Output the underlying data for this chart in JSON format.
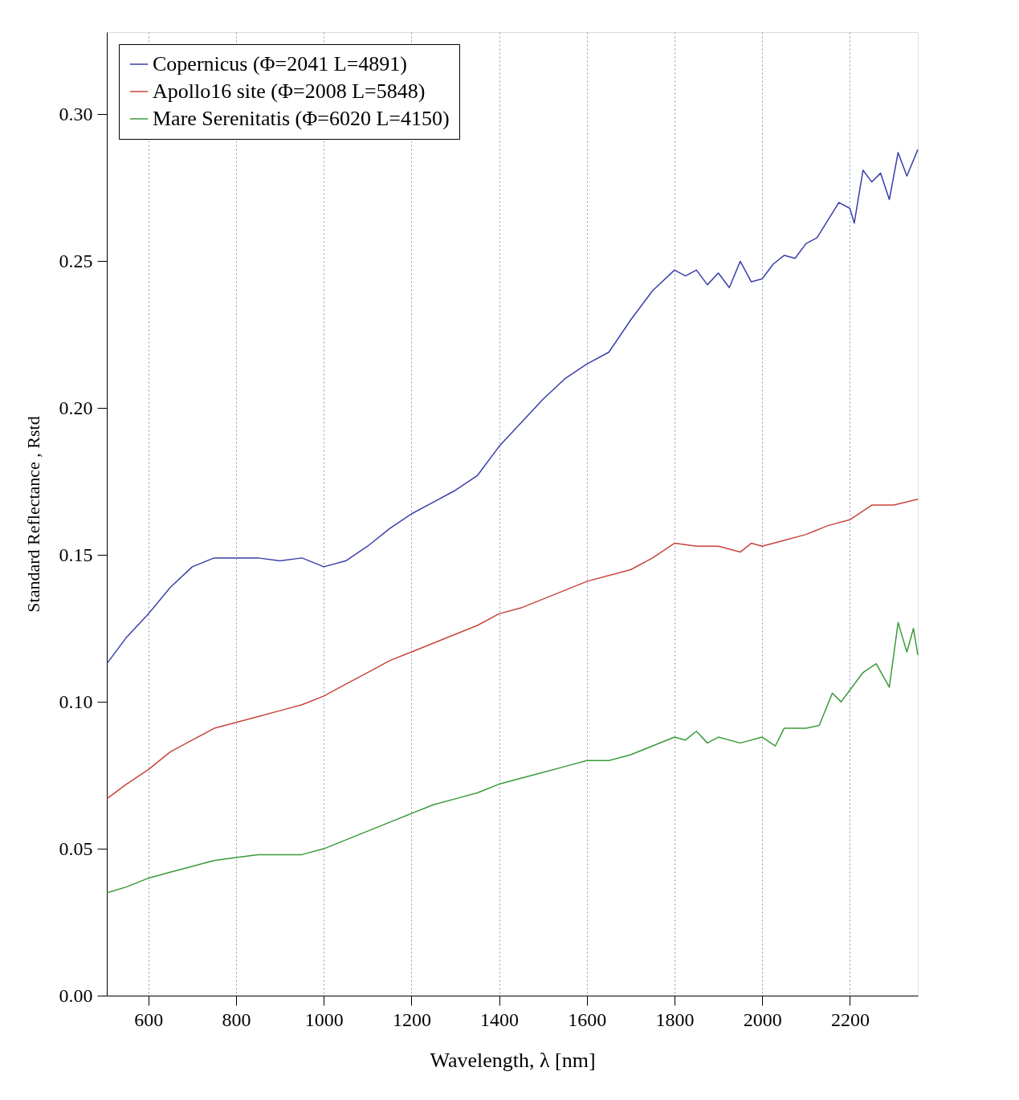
{
  "chart_data": {
    "type": "line",
    "xlabel": "Wavelength, λ [nm]",
    "ylabel": "Standard Reflectance , Rstd",
    "xlim": [
      505,
      2355
    ],
    "ylim": [
      0,
      0.328
    ],
    "xticks": [
      600,
      800,
      1000,
      1200,
      1400,
      1600,
      1800,
      2000,
      2200
    ],
    "yticks": [
      {
        "value": 0,
        "label": "0.00"
      },
      {
        "value": 0.05,
        "label": "0.05"
      },
      {
        "value": 0.1,
        "label": "0.10"
      },
      {
        "value": 0.15,
        "label": "0.15"
      },
      {
        "value": 0.2,
        "label": "0.20"
      },
      {
        "value": 0.25,
        "label": "0.25"
      },
      {
        "value": 0.3,
        "label": "0.30"
      }
    ],
    "grid": "x",
    "legend": "top left",
    "line_style": "solid",
    "marker": "none",
    "series": [
      {
        "name": "Copernicus    (Φ=2041 L=4891)",
        "color": "#3a3fa8",
        "x": [
          505,
          550,
          600,
          650,
          700,
          750,
          800,
          850,
          900,
          950,
          1000,
          1050,
          1100,
          1150,
          1200,
          1250,
          1300,
          1350,
          1400,
          1450,
          1500,
          1550,
          1600,
          1650,
          1700,
          1750,
          1800,
          1825,
          1850,
          1875,
          1900,
          1925,
          1950,
          1975,
          2000,
          2025,
          2050,
          2075,
          2100,
          2125,
          2150,
          2175,
          2200,
          2210,
          2230,
          2250,
          2270,
          2290,
          2310,
          2330,
          2355
        ],
        "values": [
          0.113,
          0.122,
          0.13,
          0.139,
          0.146,
          0.149,
          0.149,
          0.149,
          0.148,
          0.149,
          0.146,
          0.148,
          0.153,
          0.159,
          0.164,
          0.168,
          0.172,
          0.177,
          0.187,
          0.195,
          0.203,
          0.21,
          0.215,
          0.219,
          0.23,
          0.24,
          0.247,
          0.245,
          0.247,
          0.242,
          0.246,
          0.241,
          0.25,
          0.243,
          0.244,
          0.249,
          0.252,
          0.251,
          0.256,
          0.258,
          0.264,
          0.27,
          0.268,
          0.263,
          0.281,
          0.277,
          0.28,
          0.271,
          0.287,
          0.279,
          0.288
        ]
      },
      {
        "name": "Apollo16 site (Φ=2008 L=5848)",
        "color": "#c8453a",
        "x": [
          505,
          550,
          600,
          650,
          700,
          750,
          800,
          850,
          900,
          950,
          1000,
          1050,
          1100,
          1150,
          1200,
          1250,
          1300,
          1350,
          1400,
          1450,
          1500,
          1550,
          1600,
          1650,
          1700,
          1750,
          1800,
          1850,
          1900,
          1950,
          1975,
          2000,
          2050,
          2100,
          2150,
          2200,
          2250,
          2300,
          2355
        ],
        "values": [
          0.067,
          0.072,
          0.077,
          0.083,
          0.087,
          0.091,
          0.093,
          0.095,
          0.097,
          0.099,
          0.102,
          0.106,
          0.11,
          0.114,
          0.117,
          0.12,
          0.123,
          0.126,
          0.13,
          0.132,
          0.135,
          0.138,
          0.141,
          0.143,
          0.145,
          0.149,
          0.154,
          0.153,
          0.153,
          0.151,
          0.154,
          0.153,
          0.155,
          0.157,
          0.16,
          0.162,
          0.167,
          0.167,
          0.169
        ]
      },
      {
        "name": "Mare Serenitatis (Φ=6020 L=4150)",
        "color": "#3a9a3a",
        "x": [
          505,
          550,
          600,
          650,
          700,
          750,
          800,
          850,
          900,
          950,
          1000,
          1050,
          1100,
          1150,
          1200,
          1250,
          1300,
          1350,
          1400,
          1450,
          1500,
          1550,
          1600,
          1650,
          1700,
          1750,
          1800,
          1825,
          1850,
          1875,
          1900,
          1950,
          2000,
          2030,
          2050,
          2100,
          2130,
          2160,
          2180,
          2200,
          2230,
          2260,
          2290,
          2310,
          2330,
          2345,
          2355
        ],
        "values": [
          0.035,
          0.037,
          0.04,
          0.042,
          0.044,
          0.046,
          0.047,
          0.048,
          0.048,
          0.048,
          0.05,
          0.053,
          0.056,
          0.059,
          0.062,
          0.065,
          0.067,
          0.069,
          0.072,
          0.074,
          0.076,
          0.078,
          0.08,
          0.08,
          0.082,
          0.085,
          0.088,
          0.087,
          0.09,
          0.086,
          0.088,
          0.086,
          0.088,
          0.085,
          0.091,
          0.091,
          0.092,
          0.103,
          0.1,
          0.104,
          0.11,
          0.113,
          0.105,
          0.127,
          0.117,
          0.125,
          0.116
        ]
      }
    ]
  }
}
